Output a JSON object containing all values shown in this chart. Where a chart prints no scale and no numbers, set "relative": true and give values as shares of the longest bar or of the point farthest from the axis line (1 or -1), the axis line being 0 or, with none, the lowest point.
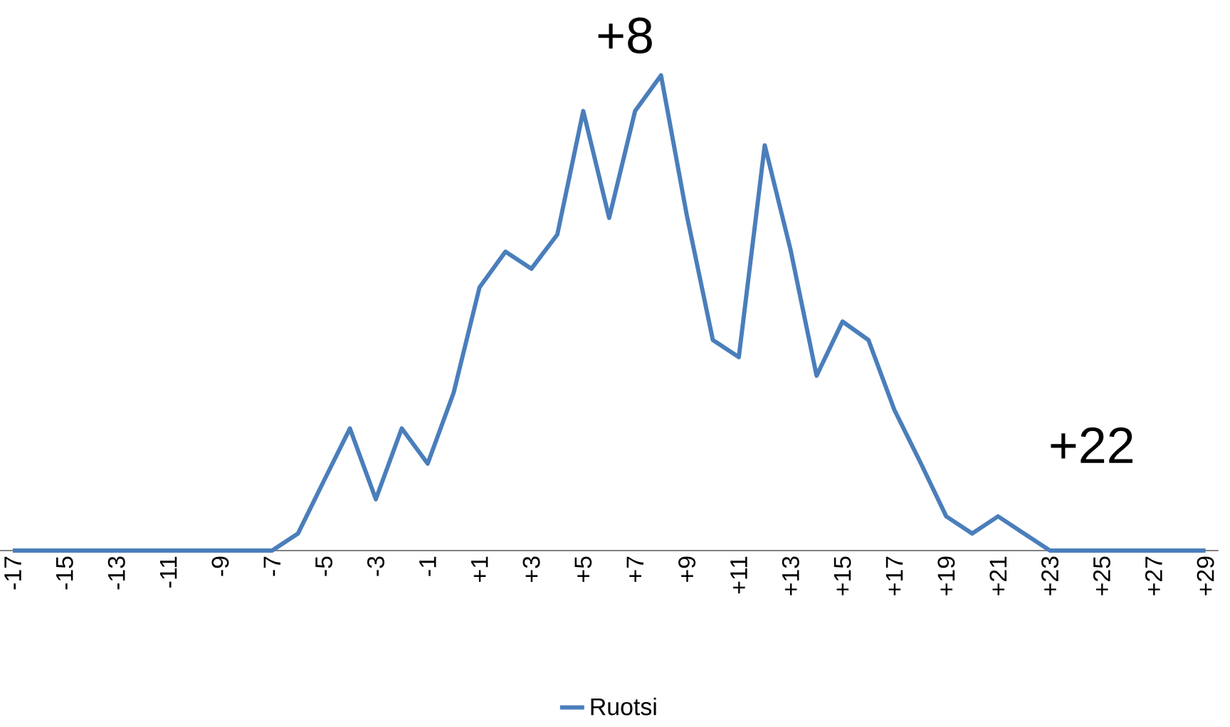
{
  "chart_data": {
    "type": "line",
    "categories": [
      "-17",
      null,
      "-15",
      null,
      "-13",
      null,
      "-11",
      null,
      "-9",
      null,
      "-7",
      null,
      "-5",
      null,
      "-3",
      null,
      "-1",
      null,
      "+1",
      null,
      "+3",
      null,
      "+5",
      null,
      "+7",
      null,
      "+9",
      null,
      "+11",
      null,
      "+13",
      null,
      "+15",
      null,
      "+17",
      null,
      "+19",
      null,
      "+21",
      null,
      "+23",
      null,
      "+25",
      null,
      "+27",
      null,
      "+29"
    ],
    "series": [
      {
        "name": "Ruotsi",
        "color": "#4a7ebb",
        "values": [
          0,
          0,
          0,
          0,
          0,
          0,
          0,
          0,
          0,
          0,
          0,
          0.036,
          0.147,
          0.257,
          0.108,
          0.257,
          0.183,
          0.332,
          0.554,
          0.629,
          0.593,
          0.665,
          0.925,
          0.7,
          0.925,
          1,
          0.704,
          0.443,
          0.407,
          0.853,
          0.632,
          0.368,
          0.482,
          0.443,
          0.296,
          0.186,
          0.072,
          0.036,
          0.072,
          0.036,
          0,
          0,
          0,
          0,
          0,
          0,
          0
        ]
      }
    ],
    "relative": true,
    "legend": "bottom",
    "annotations": [
      "+8",
      "+22"
    ]
  }
}
